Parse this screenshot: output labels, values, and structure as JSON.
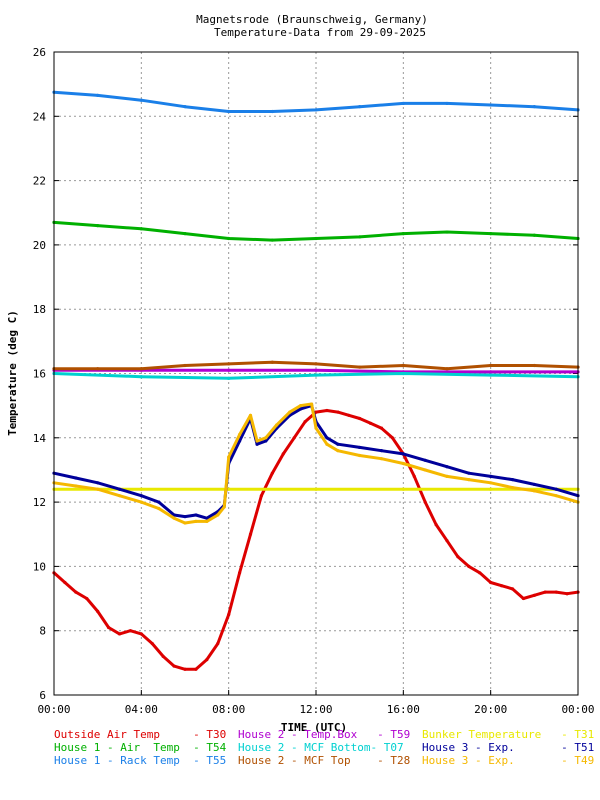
{
  "chart_data": {
    "type": "line",
    "title": "Magnetsrode (Braunschweig, Germany)",
    "subtitle": "Temperature-Data from 29-09-2025",
    "xlabel": "TIME (UTC)",
    "ylabel": "Temperature (deg C)",
    "xlim": [
      0,
      24
    ],
    "ylim": [
      6,
      26
    ],
    "x_ticks": [
      "00:00",
      "04:00",
      "08:00",
      "12:00",
      "16:00",
      "20:00",
      "00:00"
    ],
    "y_ticks": [
      "6",
      "8",
      "10",
      "12",
      "14",
      "16",
      "18",
      "20",
      "22",
      "24",
      "26"
    ],
    "grid": true,
    "legend_position": "bottom",
    "series": [
      {
        "name": "Outside Air Temp     - T30",
        "color": "#dd0000",
        "x": [
          0,
          0.5,
          1,
          1.5,
          2,
          2.5,
          3,
          3.5,
          4,
          4.5,
          5,
          5.5,
          6,
          6.5,
          7,
          7.5,
          8,
          8.5,
          9,
          9.5,
          10,
          10.5,
          11,
          11.5,
          12,
          12.5,
          13,
          13.5,
          14,
          14.5,
          15,
          15.5,
          16,
          16.5,
          17,
          17.5,
          18,
          18.5,
          19,
          19.5,
          20,
          20.5,
          21,
          21.5,
          22,
          22.5,
          23,
          23.5,
          24
        ],
        "y": [
          9.8,
          9.5,
          9.2,
          9.0,
          8.6,
          8.1,
          7.9,
          8.0,
          7.9,
          7.6,
          7.2,
          6.9,
          6.8,
          6.8,
          7.1,
          7.6,
          8.5,
          9.8,
          11.0,
          12.2,
          12.9,
          13.5,
          14.0,
          14.5,
          14.8,
          14.85,
          14.8,
          14.7,
          14.6,
          14.45,
          14.3,
          14.0,
          13.5,
          12.8,
          12.0,
          11.3,
          10.8,
          10.3,
          10.0,
          9.8,
          9.5,
          9.4,
          9.3,
          9.0,
          9.1,
          9.2,
          9.2,
          9.15,
          9.2
        ]
      },
      {
        "name": "House 1 - Air  Temp  - T54",
        "color": "#00b000",
        "x": [
          0,
          2,
          4,
          6,
          8,
          10,
          12,
          14,
          16,
          18,
          20,
          22,
          24
        ],
        "y": [
          20.7,
          20.6,
          20.5,
          20.35,
          20.2,
          20.15,
          20.2,
          20.25,
          20.35,
          20.4,
          20.35,
          20.3,
          20.2
        ]
      },
      {
        "name": "House 1 - Rack Temp  - T55",
        "color": "#1a7fe8",
        "x": [
          0,
          2,
          4,
          6,
          8,
          10,
          12,
          14,
          16,
          18,
          20,
          22,
          24
        ],
        "y": [
          24.75,
          24.65,
          24.5,
          24.3,
          24.15,
          24.15,
          24.2,
          24.3,
          24.4,
          24.4,
          24.35,
          24.3,
          24.2
        ]
      },
      {
        "name": "House 2 - Temp.Box   - T59",
        "color": "#b000d0",
        "x": [
          0,
          4,
          8,
          12,
          16,
          20,
          24
        ],
        "y": [
          16.1,
          16.1,
          16.1,
          16.1,
          16.05,
          16.05,
          16.05
        ]
      },
      {
        "name": "House 2 - MCF Bottom- T07",
        "color": "#00d0d0",
        "x": [
          0,
          4,
          8,
          12,
          16,
          20,
          24
        ],
        "y": [
          16.0,
          15.9,
          15.85,
          15.95,
          16.0,
          15.95,
          15.9
        ]
      },
      {
        "name": "House 2 - MCF Top    - T28",
        "color": "#b05000",
        "x": [
          0,
          2,
          4,
          6,
          8,
          10,
          12,
          14,
          16,
          18,
          20,
          22,
          24
        ],
        "y": [
          16.15,
          16.15,
          16.15,
          16.25,
          16.3,
          16.35,
          16.3,
          16.2,
          16.25,
          16.15,
          16.25,
          16.25,
          16.2
        ]
      },
      {
        "name": "Bunker Temperature   - T31",
        "color": "#e8e800",
        "x": [
          0,
          4,
          8,
          12,
          16,
          20,
          24
        ],
        "y": [
          12.4,
          12.4,
          12.4,
          12.4,
          12.4,
          12.4,
          12.4
        ]
      },
      {
        "name": "House 3 - Exp.       - T51",
        "color": "#00009a",
        "x": [
          0,
          1,
          2,
          3,
          4,
          4.8,
          5.5,
          6,
          6.5,
          7,
          7.5,
          7.8,
          8,
          8.5,
          9,
          9.3,
          9.7,
          10.2,
          10.8,
          11.3,
          11.8,
          12,
          12.5,
          13,
          14,
          15,
          16,
          17,
          18,
          19,
          20,
          21,
          22,
          23,
          24
        ],
        "y": [
          12.9,
          12.75,
          12.6,
          12.4,
          12.2,
          12.0,
          11.6,
          11.55,
          11.6,
          11.5,
          11.7,
          11.9,
          13.2,
          13.9,
          14.6,
          13.8,
          13.9,
          14.3,
          14.7,
          14.9,
          15.0,
          14.5,
          14.0,
          13.8,
          13.7,
          13.6,
          13.5,
          13.3,
          13.1,
          12.9,
          12.8,
          12.7,
          12.55,
          12.4,
          12.2
        ]
      },
      {
        "name": "House 3 - Exp.       - T49",
        "color": "#f5b800",
        "x": [
          0,
          1,
          2,
          3,
          4,
          4.8,
          5.5,
          6,
          6.5,
          7,
          7.5,
          7.8,
          8,
          8.5,
          9,
          9.3,
          9.7,
          10.2,
          10.8,
          11.3,
          11.8,
          12,
          12.5,
          13,
          14,
          15,
          16,
          17,
          18,
          19,
          20,
          21,
          22,
          23,
          24
        ],
        "y": [
          12.6,
          12.5,
          12.4,
          12.2,
          12.0,
          11.8,
          11.5,
          11.35,
          11.4,
          11.4,
          11.6,
          11.85,
          13.4,
          14.1,
          14.7,
          13.9,
          14.0,
          14.4,
          14.8,
          15.0,
          15.05,
          14.3,
          13.8,
          13.6,
          13.45,
          13.35,
          13.2,
          13.0,
          12.8,
          12.7,
          12.6,
          12.45,
          12.35,
          12.2,
          12.0
        ]
      }
    ]
  }
}
